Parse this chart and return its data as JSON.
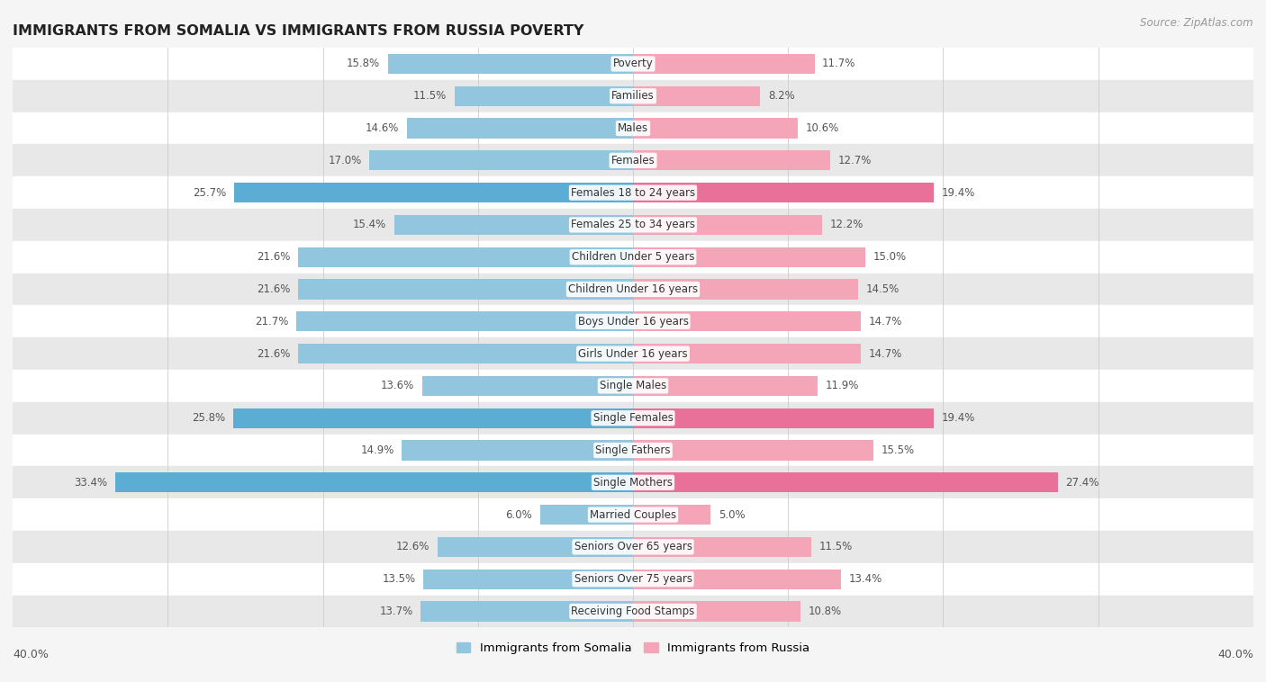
{
  "title": "IMMIGRANTS FROM SOMALIA VS IMMIGRANTS FROM RUSSIA POVERTY",
  "source": "Source: ZipAtlas.com",
  "categories": [
    "Poverty",
    "Families",
    "Males",
    "Females",
    "Females 18 to 24 years",
    "Females 25 to 34 years",
    "Children Under 5 years",
    "Children Under 16 years",
    "Boys Under 16 years",
    "Girls Under 16 years",
    "Single Males",
    "Single Females",
    "Single Fathers",
    "Single Mothers",
    "Married Couples",
    "Seniors Over 65 years",
    "Seniors Over 75 years",
    "Receiving Food Stamps"
  ],
  "somalia_values": [
    15.8,
    11.5,
    14.6,
    17.0,
    25.7,
    15.4,
    21.6,
    21.6,
    21.7,
    21.6,
    13.6,
    25.8,
    14.9,
    33.4,
    6.0,
    12.6,
    13.5,
    13.7
  ],
  "russia_values": [
    11.7,
    8.2,
    10.6,
    12.7,
    19.4,
    12.2,
    15.0,
    14.5,
    14.7,
    14.7,
    11.9,
    19.4,
    15.5,
    27.4,
    5.0,
    11.5,
    13.4,
    10.8
  ],
  "somalia_color": "#92c5de",
  "russia_color": "#f4a6b8",
  "somalia_highlight_color": "#5badd4",
  "russia_highlight_color": "#e87099",
  "highlight_rows": [
    4,
    11,
    13
  ],
  "background_color": "#f5f5f5",
  "row_bg_light": "#ffffff",
  "row_bg_dark": "#e8e8e8",
  "xlim": 40.0,
  "bar_height": 0.62,
  "legend_somalia": "Immigrants from Somalia",
  "legend_russia": "Immigrants from Russia"
}
